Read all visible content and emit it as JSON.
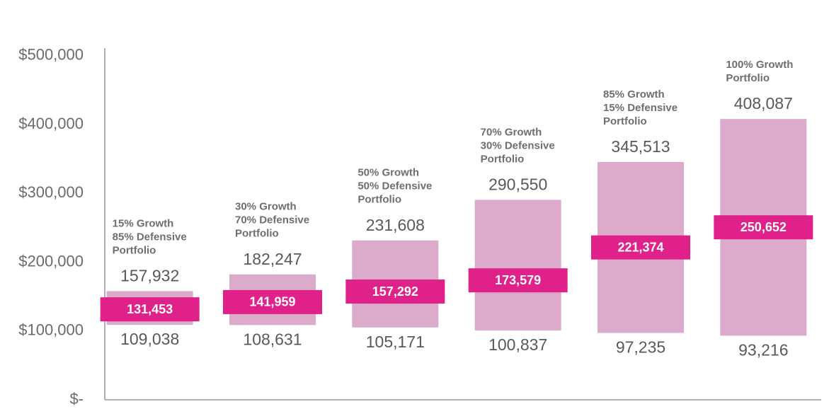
{
  "chart_data": {
    "type": "floating-bar",
    "categories": [
      [
        "15% Growth",
        "85% Defensive",
        "Portfolio"
      ],
      [
        "30% Growth",
        "70% Defensive",
        "Portfolio"
      ],
      [
        "50% Growth",
        "50% Defensive",
        "Portfolio"
      ],
      [
        "70% Growth",
        "30% Defensive",
        "Portfolio"
      ],
      [
        "85% Growth",
        "15% Defensive",
        "Portfolio"
      ],
      [
        "100% Growth",
        "Portfolio"
      ]
    ],
    "low": [
      109038,
      108631,
      105171,
      100837,
      97235,
      93216
    ],
    "low_labels": [
      "109,038",
      "108,631",
      "105,171",
      "100,837",
      "97,235",
      "93,216"
    ],
    "high": [
      157932,
      182247,
      231608,
      290550,
      345513,
      408087
    ],
    "high_labels": [
      "157,932",
      "182,247",
      "231,608",
      "290,550",
      "345,513",
      "408,087"
    ],
    "median": [
      131453,
      141959,
      157292,
      173579,
      221374,
      250652
    ],
    "median_labels": [
      "131,453",
      "141,959",
      "157,292",
      "173,579",
      "221,374",
      "250,652"
    ],
    "range_color": "#dcaacb",
    "median_color": "#e0218a",
    "ylim": [
      0,
      511000
    ],
    "yticks": [
      {
        "value": 0,
        "label": "$-"
      },
      {
        "value": 100000,
        "label": "$100,000"
      },
      {
        "value": 200000,
        "label": "$200,000"
      },
      {
        "value": 300000,
        "label": "$300,000"
      },
      {
        "value": 400000,
        "label": "$400,000"
      },
      {
        "value": 500000,
        "label": "$500,000"
      }
    ],
    "grid": false
  }
}
